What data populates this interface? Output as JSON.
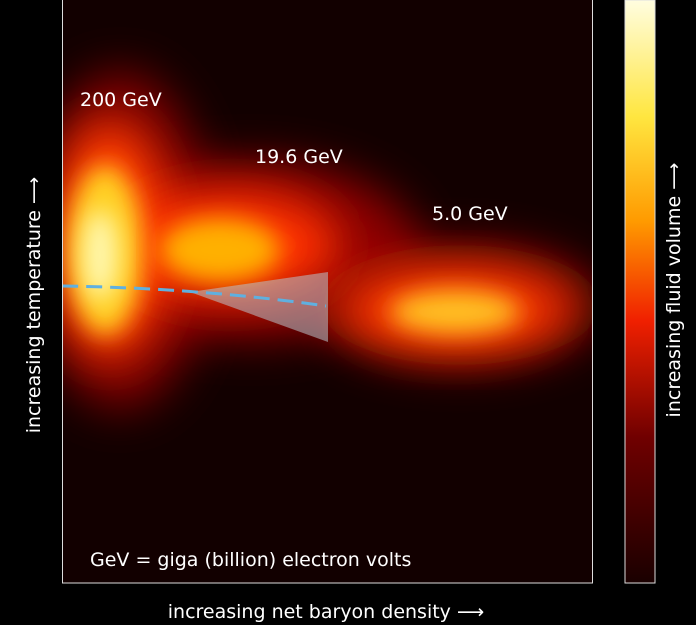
{
  "labels": {
    "energy_200": "200 GeV",
    "energy_19_6": "19.6 GeV",
    "energy_5_0": "5.0 GeV",
    "note": "GeV = giga (billion) electron volts"
  },
  "axes": {
    "y_label": "increasing temperature ⟶",
    "x_label": "increasing net baryon density ⟶",
    "colorbar_label": "increasing fluid volume ⟶"
  }
}
